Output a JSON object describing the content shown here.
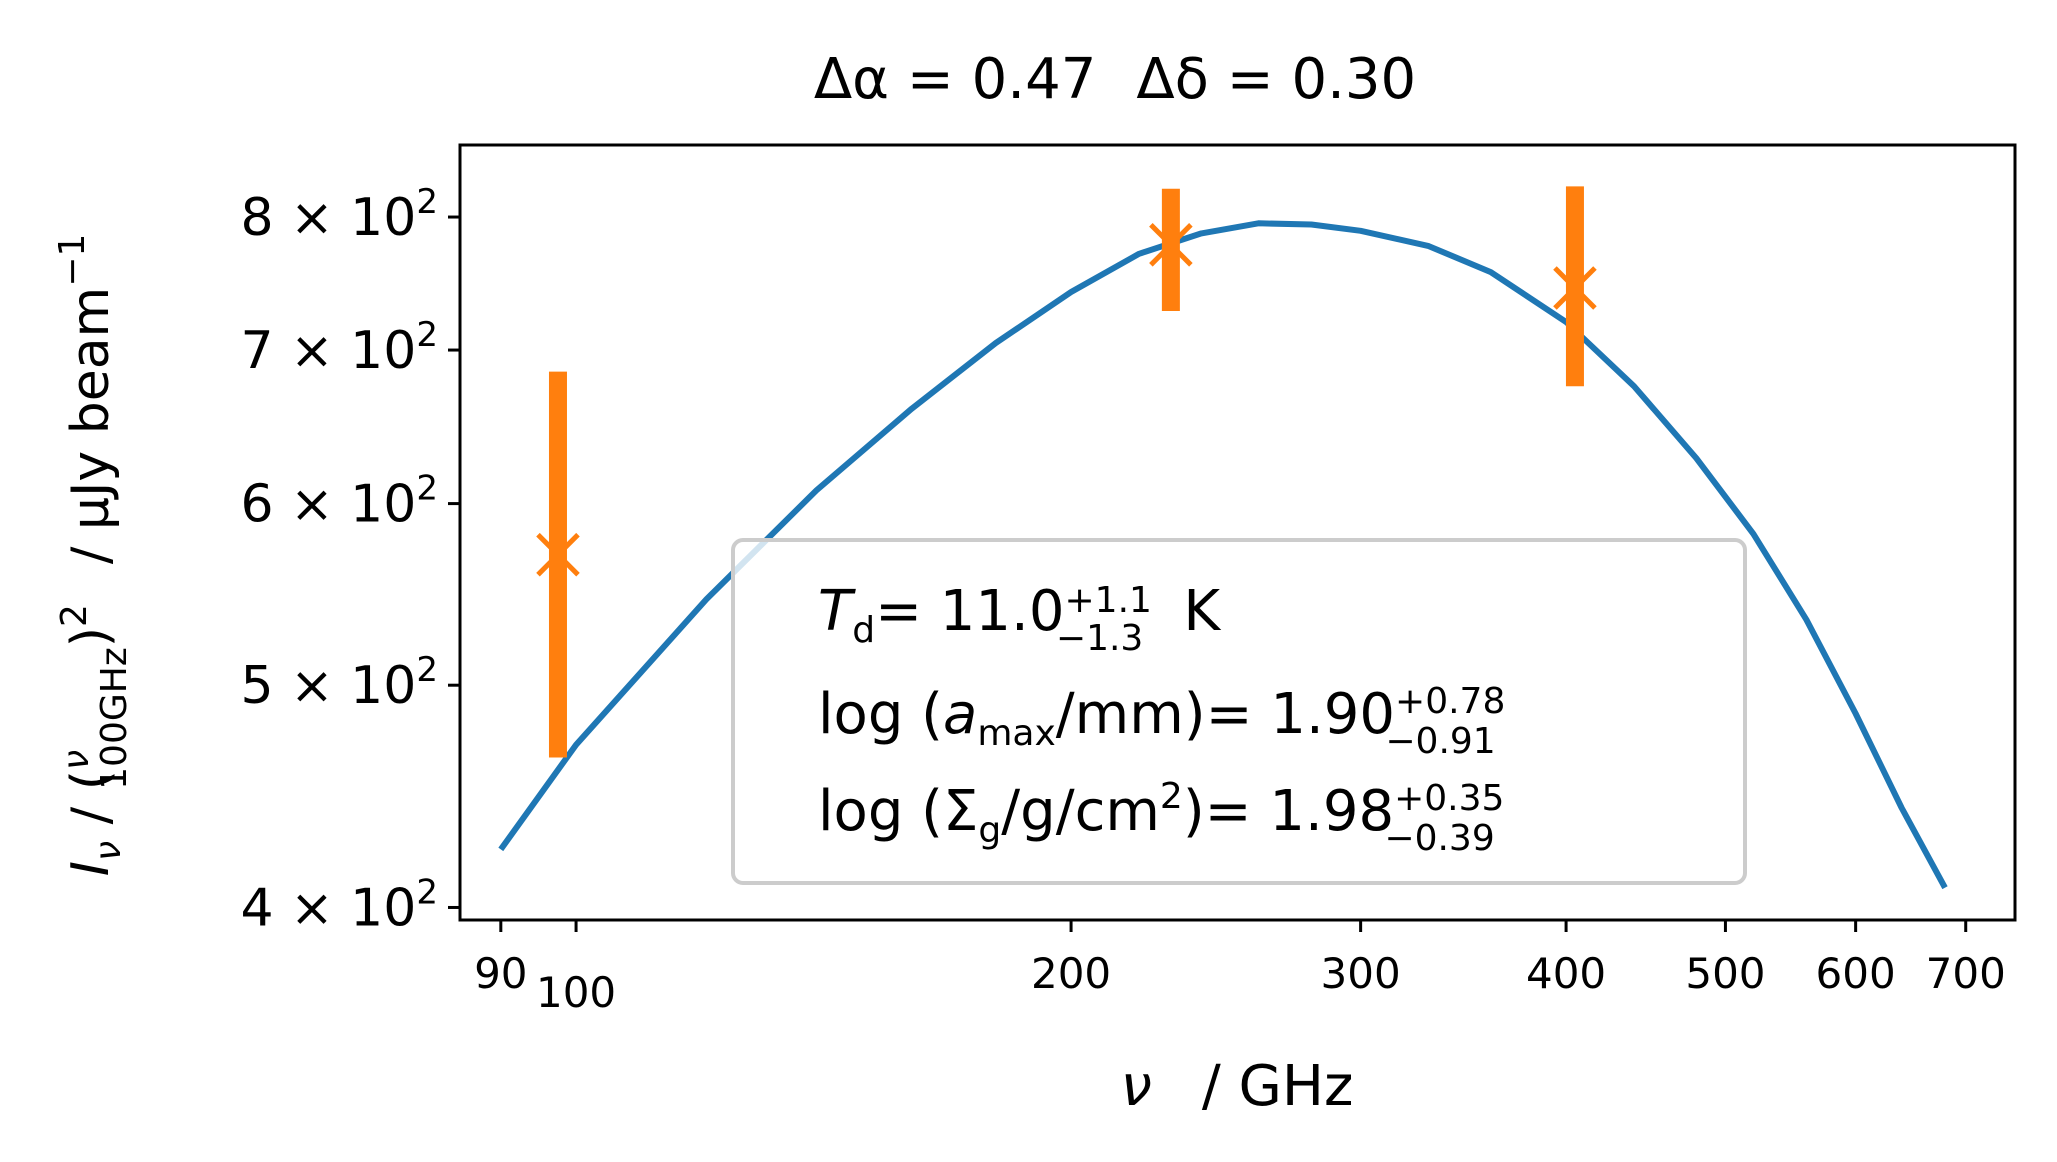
{
  "chart_data": {
    "type": "scatter",
    "title": {
      "alpha_label": "Δα",
      "alpha_value": "0.47",
      "delta_label": "Δδ",
      "delta_value": "0.30"
    },
    "xlabel": {
      "symbol": "ν",
      "unit": "/ GHz"
    },
    "ylabel": {
      "lhs": "I",
      "lhs_sub": "ν",
      "frac_num": "ν",
      "frac_den": "100GHz",
      "power": "2",
      "unit": "/ μJy beam",
      "unit_power": "−1"
    },
    "x_scale": "log",
    "y_scale": "log",
    "xlim": [
      85,
      750
    ],
    "ylim": [
      395,
      860
    ],
    "x_ticks": [
      {
        "value": 90,
        "label": "90"
      },
      {
        "value": 100,
        "label": "100"
      },
      {
        "value": 200,
        "label": "200"
      },
      {
        "value": 300,
        "label": "300"
      },
      {
        "value": 400,
        "label": "400"
      },
      {
        "value": 500,
        "label": "500"
      },
      {
        "value": 600,
        "label": "600"
      },
      {
        "value": 700,
        "label": "700"
      }
    ],
    "y_ticks": [
      {
        "value": 400,
        "mantissa": "4",
        "exp": "2"
      },
      {
        "value": 500,
        "mantissa": "5",
        "exp": "2"
      },
      {
        "value": 600,
        "mantissa": "6",
        "exp": "2"
      },
      {
        "value": 700,
        "mantissa": "7",
        "exp": "2"
      },
      {
        "value": 800,
        "mantissa": "8",
        "exp": "2"
      }
    ],
    "series": [
      {
        "type": "line",
        "color": "#1f77b4",
        "x": [
          90,
          100,
          120,
          140,
          160,
          180,
          200,
          220,
          240,
          260,
          280,
          300,
          330,
          360,
          400,
          440,
          480,
          520,
          560,
          600,
          640,
          680
        ],
        "y": [
          424,
          471,
          545,
          608,
          660,
          705,
          742,
          771,
          787,
          795,
          794,
          789,
          777,
          757,
          720,
          675,
          628,
          582,
          534,
          486,
          442,
          408
        ]
      },
      {
        "type": "errorbar",
        "color": "#ff7f0e",
        "x": [
          97.5,
          230,
          405
        ],
        "y": [
          570,
          778,
          745
        ],
        "yerr_low": [
          105,
          50,
          70
        ],
        "yerr_high": [
          115,
          45,
          80
        ]
      }
    ],
    "legend": {
      "position": "lower center",
      "line1": {
        "sym": "T",
        "sub": "d",
        "eq": "= 11.0",
        "sup": "+1.1",
        "inf": "−1.3",
        "unit": "K"
      },
      "line2": {
        "pre": "log",
        "sym": "a",
        "sub": "max",
        "post": "/mm",
        "eq": "= 1.90",
        "sup": "+0.78",
        "inf": "−0.91"
      },
      "line3": {
        "pre": "log",
        "sym": "Σ",
        "sub": "g",
        "post": "/g/cm",
        "pow": "2",
        "eq": "= 1.98",
        "sup": "+0.35",
        "inf": "−0.39"
      }
    }
  }
}
